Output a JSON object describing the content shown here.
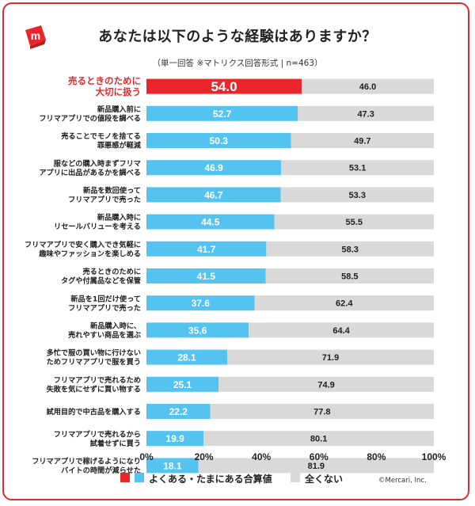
{
  "header": {
    "title": "あなたは以下のような経験はありますか？",
    "subtitle": "（単一回答 ※マトリクス回答形式 | n=463）"
  },
  "legend": {
    "yes_label": "よくある・たまにある合算値",
    "no_label": "全くない"
  },
  "copyright": "©Mercari, Inc.",
  "colors": {
    "frame": "#e8262b",
    "highlight": "#e8262b",
    "yes": "#55c3f0",
    "no": "#d9d9d9",
    "highlight_label": "#e8262b"
  },
  "chart_data": {
    "type": "bar",
    "orientation": "horizontal",
    "stacked": true,
    "categories": [
      [
        "売るときのために",
        "大切に扱う"
      ],
      [
        "新品購入前に",
        "フリマアプリでの値段を調べる"
      ],
      [
        "売ることでモノを捨てる",
        "罪悪感が軽減"
      ],
      [
        "服などの購入時まずフリマ",
        "アプリに出品があるかを調べる"
      ],
      [
        "新品を数回使って",
        "フリマアプリで売った"
      ],
      [
        "新品購入時に",
        "リセールバリューを考える"
      ],
      [
        "フリマアプリで安く購入でき気軽に",
        "趣味やファッションを楽しめる"
      ],
      [
        "売るときのために",
        "タグや付属品などを保管"
      ],
      [
        "新品を1回だけ使って",
        "フリマアプリで売った"
      ],
      [
        "新品購入時に、",
        "売れやすい商品を選ぶ"
      ],
      [
        "多忙で服の買い物に行けない",
        "ためフリマアプリで服を買う"
      ],
      [
        "フリマアプリで売れるため",
        "失敗を気にせずに買い物する"
      ],
      [
        "試用目的で中古品を購入する"
      ],
      [
        "フリマアプリで売れるから",
        "試着せずに買う"
      ],
      [
        "フリマアプリで稼げるようになり",
        "バイトの時間が減らせた"
      ]
    ],
    "series": [
      {
        "name": "よくある・たまにある合算値",
        "values": [
          54.0,
          52.7,
          50.3,
          46.9,
          46.7,
          44.5,
          41.7,
          41.5,
          37.6,
          35.6,
          28.1,
          25.1,
          22.2,
          19.9,
          18.1
        ]
      },
      {
        "name": "全くない",
        "values": [
          46.0,
          47.3,
          49.7,
          53.1,
          53.3,
          55.5,
          58.3,
          58.5,
          62.4,
          64.4,
          71.9,
          74.9,
          77.8,
          80.1,
          81.9
        ]
      }
    ],
    "value_labels": {
      "yes": [
        "54.0",
        "52.7",
        "50.3",
        "46.9",
        "46.7",
        "44.5",
        "41.7",
        "41.5",
        "37.6",
        "35.6",
        "28.1",
        "25.1",
        "22.2",
        "19.9",
        "18.1"
      ],
      "no": [
        "46.0",
        "47.3",
        "49.7",
        "53.1",
        "53.3",
        "55.5",
        "58.3",
        "58.5",
        "62.4",
        "64.4",
        "71.9",
        "74.9",
        "77.8",
        "80.1",
        "81.9"
      ]
    },
    "highlight_index": 0,
    "xlim": [
      0,
      100
    ],
    "xticks": [
      "0%",
      "20%",
      "40%",
      "60%",
      "80%",
      "100%"
    ],
    "grid": false,
    "legend_position": "bottom"
  }
}
